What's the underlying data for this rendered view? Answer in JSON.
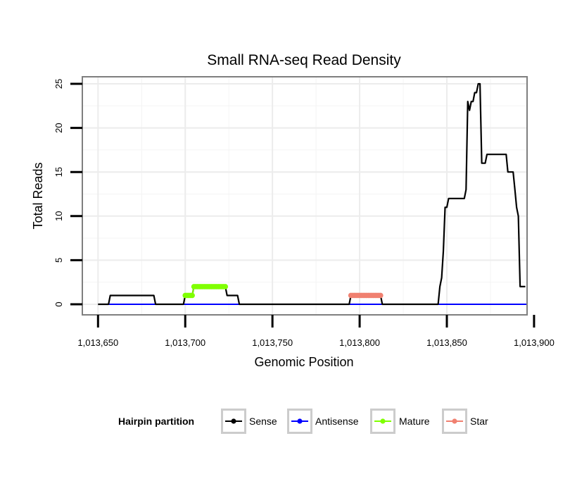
{
  "chart_data": {
    "type": "line",
    "title": "Small RNA-seq Read Density",
    "xlabel": "Genomic Position",
    "ylabel": "Total Reads",
    "xlim": [
      1013641,
      1013896
    ],
    "ylim": [
      -1.2,
      25.8
    ],
    "xticks": [
      1013650,
      1013700,
      1013750,
      1013800,
      1013850,
      1013900
    ],
    "xtick_labels": [
      "1,013,650",
      "1,013,700",
      "1,013,750",
      "1,013,800",
      "1,013,850",
      "1,013,900"
    ],
    "yticks": [
      0,
      5,
      10,
      15,
      20,
      25
    ],
    "ytick_labels": [
      "0",
      "5",
      "10",
      "15",
      "20",
      "25"
    ],
    "grid": true,
    "legend_position": "bottom",
    "legend": {
      "title": "Hairpin partition",
      "entries": [
        {
          "name": "Sense",
          "color": "#000000"
        },
        {
          "name": "Antisense",
          "color": "#0000ff"
        },
        {
          "name": "Mature",
          "color": "#7fff00"
        },
        {
          "name": "Star",
          "color": "#f08070"
        }
      ]
    },
    "series": [
      {
        "name": "Sense",
        "color": "#000000",
        "style": "line",
        "x": [
          1013650,
          1013656,
          1013657,
          1013682,
          1013683,
          1013699,
          1013700,
          1013704,
          1013705,
          1013723,
          1013724,
          1013730,
          1013731,
          1013794,
          1013795,
          1013812,
          1013813,
          1013845,
          1013846,
          1013847,
          1013848,
          1013849,
          1013850,
          1013851,
          1013852,
          1013853,
          1013859,
          1013860,
          1013861,
          1013862,
          1013863,
          1013864,
          1013865,
          1013866,
          1013867,
          1013868,
          1013869,
          1013870,
          1013871,
          1013872,
          1013873,
          1013874,
          1013875,
          1013876,
          1013877,
          1013878,
          1013884,
          1013885,
          1013886,
          1013888,
          1013889,
          1013890,
          1013891,
          1013892,
          1013893,
          1013895
        ],
        "values": [
          0,
          0,
          1,
          1,
          0,
          0,
          1,
          1,
          2,
          2,
          1,
          1,
          0,
          0,
          1,
          1,
          0,
          0,
          2,
          3,
          6,
          11,
          11,
          12,
          12,
          12,
          12,
          12,
          13,
          23,
          22,
          23,
          23,
          24,
          24,
          25,
          25,
          16,
          16,
          16,
          17,
          17,
          17,
          17,
          17,
          17,
          17,
          15,
          15,
          15,
          13,
          11,
          10,
          2,
          2,
          2
        ]
      },
      {
        "name": "Antisense",
        "color": "#0000ff",
        "style": "line",
        "x": [
          1013656,
          1013896
        ],
        "values": [
          0,
          0
        ]
      },
      {
        "name": "Mature",
        "color": "#7fff00",
        "style": "points",
        "x": [
          1013700,
          1013701,
          1013702,
          1013703,
          1013704,
          1013705,
          1013706,
          1013707,
          1013708,
          1013709,
          1013710,
          1013711,
          1013712,
          1013713,
          1013714,
          1013715,
          1013716,
          1013717,
          1013718,
          1013719,
          1013720,
          1013721,
          1013722,
          1013723
        ],
        "values": [
          1,
          1,
          1,
          1,
          1,
          2,
          2,
          2,
          2,
          2,
          2,
          2,
          2,
          2,
          2,
          2,
          2,
          2,
          2,
          2,
          2,
          2,
          2,
          2
        ]
      },
      {
        "name": "Star",
        "color": "#f08070",
        "style": "points",
        "x": [
          1013795,
          1013796,
          1013797,
          1013798,
          1013799,
          1013800,
          1013801,
          1013802,
          1013803,
          1013804,
          1013805,
          1013806,
          1013807,
          1013808,
          1013809,
          1013810,
          1013811,
          1013812
        ],
        "values": [
          1,
          1,
          1,
          1,
          1,
          1,
          1,
          1,
          1,
          1,
          1,
          1,
          1,
          1,
          1,
          1,
          1,
          1
        ]
      }
    ]
  }
}
